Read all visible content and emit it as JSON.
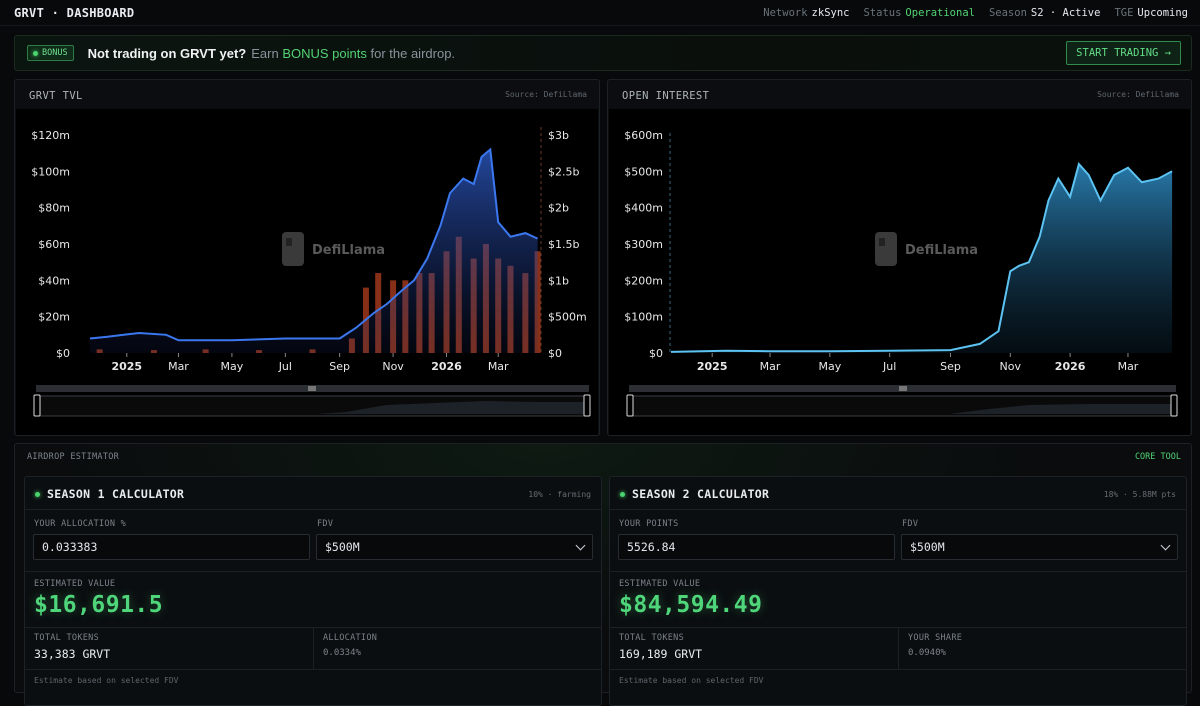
{
  "header": {
    "brand": "GRVT · DASHBOARD",
    "status": [
      {
        "key": "Network",
        "value": "zkSync",
        "accent": false
      },
      {
        "key": "Status",
        "value": "Operational",
        "accent": true
      },
      {
        "key": "Season",
        "value": "S2 · Active",
        "accent": false
      },
      {
        "key": "TGE",
        "value": "Upcoming",
        "accent": false
      }
    ]
  },
  "banner": {
    "badge": "BONUS",
    "title": "Not trading on GRVT yet?",
    "text_prefix": "Earn ",
    "text_highlight": "BONUS points",
    "text_suffix": " for the airdrop.",
    "button": "START TRADING →"
  },
  "tvl_panel": {
    "title": "GRVT TVL",
    "source": "Source: DefiLlama",
    "watermark": "DefiLlama",
    "y_left_ticks": [
      "$120m",
      "$100m",
      "$80m",
      "$60m",
      "$40m",
      "$20m",
      "$0"
    ],
    "y_right_ticks": [
      "$3b",
      "$2.5b",
      "$2b",
      "$1.5b",
      "$1b",
      "$500m",
      "$0"
    ],
    "x_ticks": [
      "2025",
      "Mar",
      "May",
      "Jul",
      "Sep",
      "Nov",
      "2026",
      "Mar"
    ]
  },
  "oi_panel": {
    "title": "OPEN INTEREST",
    "source": "Source: DefiLlama",
    "watermark": "DefiLlama",
    "y_ticks": [
      "$600m",
      "$500m",
      "$400m",
      "$300m",
      "$200m",
      "$100m",
      "$0"
    ],
    "x_ticks": [
      "2025",
      "Mar",
      "May",
      "Jul",
      "Sep",
      "Nov",
      "2026",
      "Mar"
    ]
  },
  "estimator": {
    "title": "AIRDROP ESTIMATOR",
    "tag": "CORE TOOL",
    "season1": {
      "title": "SEASON 1 CALCULATOR",
      "meta": "10% · farming",
      "input_label": "YOUR ALLOCATION %",
      "input_value": "0.033383",
      "fdv_label": "FDV",
      "fdv_value": "$500M",
      "est_label": "ESTIMATED VALUE",
      "est_value": "$16,691.5",
      "tokens_label": "TOTAL TOKENS",
      "tokens_value": "33,383 GRVT",
      "side_label": "ALLOCATION",
      "side_value": "0.0334%",
      "footnote": "Estimate based on selected FDV"
    },
    "season2": {
      "title": "SEASON 2 CALCULATOR",
      "meta": "18% · 5.88M pts",
      "input_label": "YOUR POINTS",
      "input_value": "5526.84",
      "fdv_label": "FDV",
      "fdv_value": "$500M",
      "est_label": "ESTIMATED VALUE",
      "est_value": "$84,594.49",
      "tokens_label": "TOTAL TOKENS",
      "tokens_value": "169,189 GRVT",
      "side_label": "YOUR SHARE",
      "side_value": "0.0940%",
      "footnote": "Estimate based on selected FDV"
    }
  },
  "chart_data": [
    {
      "type": "area",
      "series": [
        {
          "name": "",
          "axis": "left",
          "color": "#3b6fd8",
          "x": [
            "2024-11-20",
            "2024-12-10",
            "2025-01-15",
            "2025-02-15",
            "2025-03-01",
            "2025-05-01",
            "2025-07-01",
            "2025-09-01",
            "2025-09-20",
            "2025-10-10",
            "2025-10-25",
            "2025-11-10",
            "2025-11-25",
            "2025-12-10",
            "2025-12-25",
            "2026-01-05",
            "2026-01-20",
            "2026-02-01",
            "2026-02-10",
            "2026-02-20",
            "2026-03-01",
            "2026-03-15",
            "2026-04-01",
            "2026-04-15"
          ],
          "values": [
            8,
            9,
            11,
            10,
            7,
            7,
            8,
            8,
            14,
            22,
            27,
            34,
            40,
            52,
            70,
            88,
            96,
            93,
            108,
            112,
            72,
            64,
            66,
            63
          ]
        },
        {
          "name": "",
          "axis": "right",
          "color": "#b5401f",
          "kind": "bar",
          "x": [
            "2024-12-01",
            "2025-02-01",
            "2025-04-01",
            "2025-06-01",
            "2025-08-01",
            "2025-09-15",
            "2025-10-01",
            "2025-10-15",
            "2025-11-01",
            "2025-11-15",
            "2025-12-01",
            "2025-12-15",
            "2026-01-01",
            "2026-01-15",
            "2026-02-01",
            "2026-02-15",
            "2026-03-01",
            "2026-03-15",
            "2026-04-01",
            "2026-04-15"
          ],
          "values": [
            0.05,
            0.04,
            0.05,
            0.04,
            0.05,
            0.2,
            0.9,
            1.1,
            1.0,
            1.0,
            1.1,
            1.1,
            1.4,
            1.6,
            1.3,
            1.5,
            1.3,
            1.2,
            1.1,
            1.4
          ]
        }
      ],
      "ylim_left": [
        0,
        120
      ],
      "ylim_right": [
        0,
        3
      ],
      "grid": false
    },
    {
      "type": "area",
      "series": [
        {
          "name": "",
          "color": "#4fb3e8",
          "x": [
            "2024-11-20",
            "2025-01-15",
            "2025-03-01",
            "2025-05-01",
            "2025-07-01",
            "2025-09-01",
            "2025-10-01",
            "2025-10-20",
            "2025-11-01",
            "2025-11-10",
            "2025-11-20",
            "2025-12-01",
            "2025-12-10",
            "2025-12-20",
            "2026-01-01",
            "2026-01-10",
            "2026-01-20",
            "2026-02-01",
            "2026-02-15",
            "2026-03-01",
            "2026-03-15",
            "2026-04-01",
            "2026-04-15"
          ],
          "values": [
            3,
            6,
            5,
            5,
            6,
            8,
            25,
            60,
            225,
            240,
            250,
            320,
            420,
            480,
            430,
            520,
            490,
            420,
            490,
            510,
            470,
            480,
            500
          ]
        }
      ],
      "ylim": [
        0,
        600
      ],
      "grid": false
    }
  ]
}
